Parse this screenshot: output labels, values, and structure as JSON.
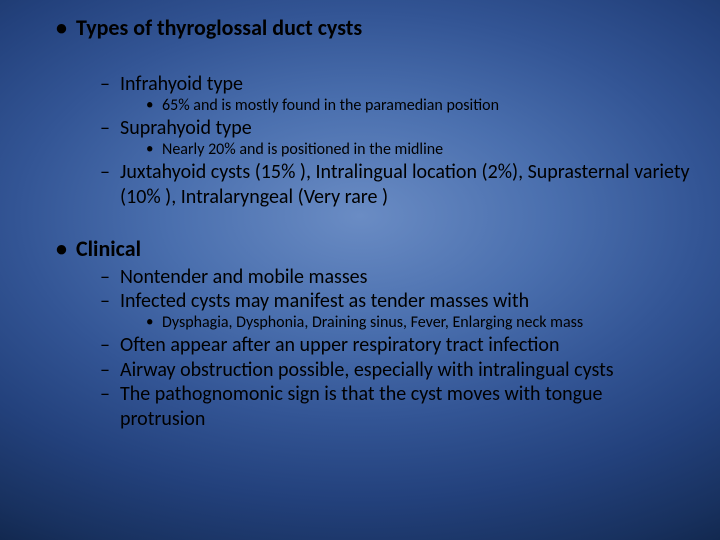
{
  "slide": {
    "background": {
      "gradient_center": "#6a8cc4",
      "gradient_mid1": "#4a6fae",
      "gradient_mid2": "#335595",
      "gradient_mid3": "#23417c",
      "gradient_edge": "#0f2448"
    },
    "text_color": "#000000",
    "fonts": {
      "family": "Calibri",
      "lvl1_size_pt": 22,
      "lvl2_size_pt": 20,
      "lvl3_size_pt": 16
    },
    "section1": {
      "heading": "Types of thyroglossal duct cysts",
      "items": [
        {
          "title": "Infrahyoid type",
          "sub": "65% and is mostly found in the paramedian position"
        },
        {
          "title": "Suprahyoid type",
          "sub": "Nearly 20% and is positioned in the midline"
        },
        {
          "title": "Juxtahyoid cysts (15% ), Intralingual location (2%), Suprasternal variety (10% ), Intralaryngeal (Very rare )"
        }
      ]
    },
    "section2": {
      "heading": "Clinical",
      "items": [
        {
          "title": "Nontender and mobile masses"
        },
        {
          "title": "Infected cysts may manifest as tender masses with",
          "sub": "Dysphagia, Dysphonia, Draining sinus, Fever, Enlarging neck mass"
        },
        {
          "title": "Often appear after an upper respiratory tract infection"
        },
        {
          "title": "Airway obstruction possible, especially with intralingual cysts"
        },
        {
          "title": "The pathognomonic sign is that the cyst moves with tongue protrusion"
        }
      ]
    }
  }
}
